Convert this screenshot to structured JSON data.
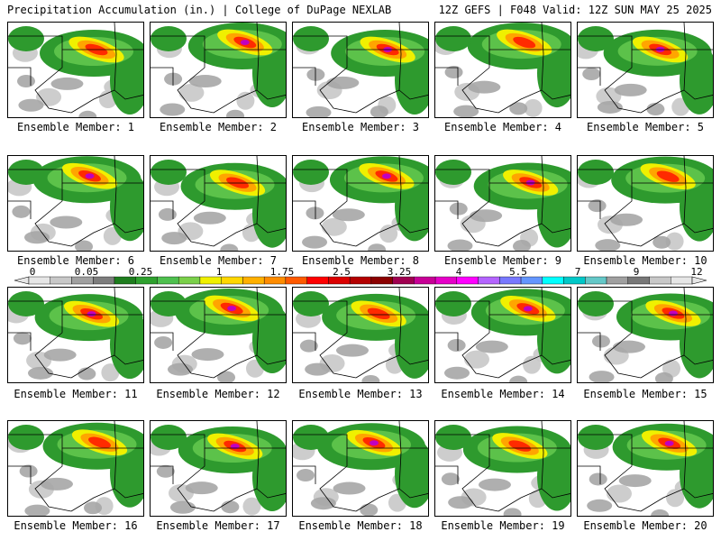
{
  "header": {
    "left": "Precipitation Accumulation (in.) | College of DuPage NEXLAB",
    "right": "12Z GEFS | F048 Valid: 12Z SUN MAY 25 2025"
  },
  "members": [
    {
      "label": "Ensemble Member: 1"
    },
    {
      "label": "Ensemble Member: 2"
    },
    {
      "label": "Ensemble Member: 3"
    },
    {
      "label": "Ensemble Member: 4"
    },
    {
      "label": "Ensemble Member: 5"
    },
    {
      "label": "Ensemble Member: 6"
    },
    {
      "label": "Ensemble Member: 7"
    },
    {
      "label": "Ensemble Member: 8"
    },
    {
      "label": "Ensemble Member: 9"
    },
    {
      "label": "Ensemble Member: 10"
    },
    {
      "label": "Ensemble Member: 11"
    },
    {
      "label": "Ensemble Member: 12"
    },
    {
      "label": "Ensemble Member: 13"
    },
    {
      "label": "Ensemble Member: 14"
    },
    {
      "label": "Ensemble Member: 15"
    },
    {
      "label": "Ensemble Member: 16"
    },
    {
      "label": "Ensemble Member: 17"
    },
    {
      "label": "Ensemble Member: 18"
    },
    {
      "label": "Ensemble Member: 19"
    },
    {
      "label": "Ensemble Member: 20"
    }
  ],
  "colorbar": {
    "tick_labels": [
      "0",
      "0.05",
      "0.25",
      "1",
      "1.75",
      "2.5",
      "3.25",
      "4",
      "5.5",
      "7",
      "9",
      "12"
    ],
    "colors": [
      "#e6e6e6",
      "#c8c8c8",
      "#a0a0a0",
      "#7d7d7d",
      "#1e7d1e",
      "#2ea02e",
      "#4ec04e",
      "#7ad04a",
      "#f0f000",
      "#ffd700",
      "#ffb000",
      "#ff8c00",
      "#ff5a00",
      "#ff0000",
      "#dc0000",
      "#b40000",
      "#8b0000",
      "#a00050",
      "#c80096",
      "#e600c8",
      "#ff00ff",
      "#b464ff",
      "#7878ff",
      "#6496ff",
      "#00ffff",
      "#00c8c8",
      "#64c8c8",
      "#a0a0a0",
      "#787878",
      "#c8c8c8",
      "#e6e6e6"
    ]
  }
}
